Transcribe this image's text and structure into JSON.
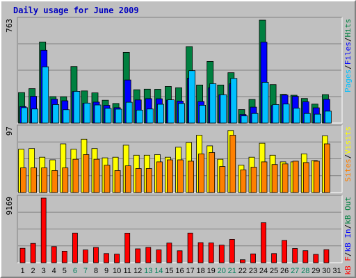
{
  "title": "Daily usage for June 2009",
  "colors": {
    "hits": "#008040",
    "files": "#0000ff",
    "pages": "#00c0ff",
    "visits": "#ffff00",
    "sites": "#ff8000",
    "kb_in": "#00c0c0",
    "kb_out": "#0000ff",
    "kb_f": "#ff0000",
    "weekend_label": "#00805c",
    "panel_bg": "#c0c0c0",
    "frame_bg": "#c0c0c0",
    "title": "#0000c0",
    "scale_label": "#000000"
  },
  "chart_data": [
    {
      "type": "bar",
      "panel": "hits_files_pages",
      "ymax_label": "763",
      "ymax": 763,
      "legend": [
        {
          "text": "Pages",
          "color": "#00c0ff"
        },
        {
          "text": "/",
          "color": "#000000"
        },
        {
          "text": "Files",
          "color": "#0000ff"
        },
        {
          "text": "/",
          "color": "#000000"
        },
        {
          "text": "Hits",
          "color": "#008040"
        }
      ],
      "series": [
        {
          "name": "Hits",
          "values": [
            226,
            255,
            601,
            196,
            195,
            419,
            238,
            224,
            169,
            145,
            524,
            247,
            251,
            250,
            271,
            262,
            567,
            282,
            457,
            282,
            373,
            100,
            175,
            763,
            285,
            213,
            206,
            182,
            140,
            211,
            0
          ]
        },
        {
          "name": "Files",
          "values": [
            122,
            198,
            540,
            177,
            165,
            233,
            146,
            155,
            131,
            114,
            319,
            171,
            181,
            180,
            170,
            163,
            333,
            160,
            262,
            210,
            291,
            64,
            118,
            600,
            130,
            208,
            198,
            158,
            113,
            176,
            0
          ]
        },
        {
          "name": "Pages",
          "values": [
            114,
            104,
            417,
            137,
            99,
            235,
            148,
            134,
            109,
            103,
            154,
            96,
            104,
            139,
            172,
            145,
            388,
            132,
            292,
            210,
            331,
            53,
            71,
            302,
            137,
            141,
            110,
            71,
            66,
            88,
            0
          ]
        }
      ],
      "categories": [
        "1",
        "2",
        "3",
        "4",
        "5",
        "6",
        "7",
        "8",
        "9",
        "10",
        "11",
        "12",
        "13",
        "14",
        "15",
        "16",
        "17",
        "18",
        "19",
        "20",
        "21",
        "22",
        "23",
        "24",
        "25",
        "26",
        "27",
        "28",
        "29",
        "30",
        "31"
      ]
    },
    {
      "type": "bar",
      "panel": "visits_sites",
      "ymax_label": "97",
      "ymax": 97,
      "legend": [
        {
          "text": "Sites",
          "color": "#ff8000"
        },
        {
          "text": "/",
          "color": "#000000"
        },
        {
          "text": "Visits",
          "color": "#ffff00"
        }
      ],
      "series": [
        {
          "name": "Visits",
          "values": [
            65,
            66,
            53,
            49,
            73,
            65,
            80,
            66,
            52,
            53,
            71,
            56,
            56,
            57,
            53,
            68,
            75,
            86,
            70,
            50,
            93,
            41,
            53,
            74,
            56,
            46,
            46,
            58,
            48,
            85,
            0
          ]
        },
        {
          "name": "Sites",
          "values": [
            37,
            37,
            37,
            33,
            37,
            50,
            57,
            50,
            41,
            33,
            40,
            36,
            36,
            46,
            49,
            49,
            47,
            58,
            60,
            39,
            86,
            34,
            38,
            46,
            42,
            43,
            47,
            45,
            47,
            73,
            0
          ]
        }
      ],
      "categories": [
        "1",
        "2",
        "3",
        "4",
        "5",
        "6",
        "7",
        "8",
        "9",
        "10",
        "11",
        "12",
        "13",
        "14",
        "15",
        "16",
        "17",
        "18",
        "19",
        "20",
        "21",
        "22",
        "23",
        "24",
        "25",
        "26",
        "27",
        "28",
        "29",
        "30",
        "31"
      ]
    },
    {
      "type": "bar",
      "panel": "kbytes",
      "ymax_label": "9169",
      "ymax": 9169,
      "legend": [
        {
          "text": "kB F",
          "color": "#ff0000"
        },
        {
          "text": "/",
          "color": "#000000"
        },
        {
          "text": "kB In",
          "color": "#0000ff"
        },
        {
          "text": "/",
          "color": "#000000"
        },
        {
          "text": "kB Out",
          "color": "#008040"
        }
      ],
      "series": [
        {
          "name": "kB F",
          "values": [
            2048,
            2743,
            9169,
            2286,
            1636,
            4206,
            1813,
            2173,
            1306,
            1226,
            4198,
            1973,
            2179,
            1828,
            2793,
            1692,
            4206,
            2853,
            2809,
            2499,
            3310,
            423,
            1249,
            5678,
            1306,
            3168,
            2020,
            1707,
            1186,
            1849,
            0
          ]
        }
      ],
      "categories": [
        "1",
        "2",
        "3",
        "4",
        "5",
        "6",
        "7",
        "8",
        "9",
        "10",
        "11",
        "12",
        "13",
        "14",
        "15",
        "16",
        "17",
        "18",
        "19",
        "20",
        "21",
        "22",
        "23",
        "24",
        "25",
        "26",
        "27",
        "28",
        "29",
        "30",
        "31"
      ]
    }
  ],
  "x_axis": {
    "days": [
      "1",
      "2",
      "3",
      "4",
      "5",
      "6",
      "7",
      "8",
      "9",
      "10",
      "11",
      "12",
      "13",
      "14",
      "15",
      "16",
      "17",
      "18",
      "19",
      "20",
      "21",
      "22",
      "23",
      "24",
      "25",
      "26",
      "27",
      "28",
      "29",
      "30",
      "31"
    ],
    "weekend_days": [
      "6",
      "7",
      "13",
      "14",
      "20",
      "21",
      "27",
      "28"
    ]
  }
}
